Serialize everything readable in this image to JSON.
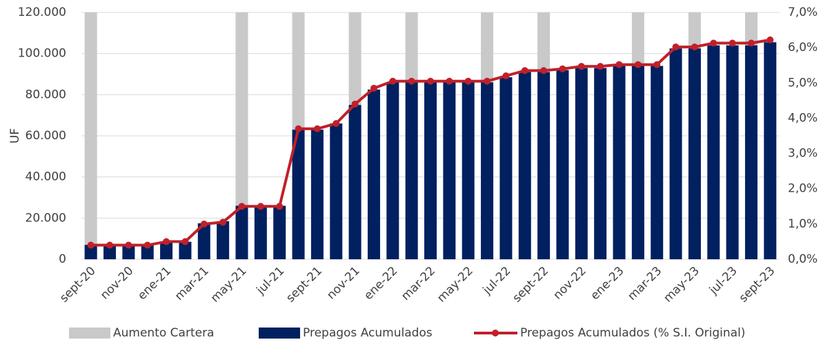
{
  "chart_data": {
    "type": "bar",
    "y_label": "UF",
    "categories": [
      "sept-20",
      null,
      "nov-20",
      null,
      "ene-21",
      null,
      "mar-21",
      null,
      "may-21",
      null,
      "jul-21",
      null,
      "sept-21",
      null,
      "nov-21",
      null,
      "ene-22",
      null,
      "mar-22",
      null,
      "may-22",
      null,
      "jul-22",
      null,
      "sept-22",
      null,
      "nov-22",
      null,
      "ene-23",
      null,
      "mar-23",
      null,
      "may-23",
      null,
      "jul-23",
      null,
      "sept-23"
    ],
    "series": [
      {
        "name": "Aumento Cartera",
        "type": "bar",
        "color": "#c9c9c9",
        "values": [
          120000,
          null,
          null,
          null,
          null,
          null,
          null,
          null,
          120000,
          null,
          null,
          120000,
          null,
          null,
          120000,
          null,
          null,
          120000,
          null,
          null,
          null,
          120000,
          null,
          null,
          120000,
          null,
          null,
          null,
          null,
          120000,
          null,
          null,
          120000,
          null,
          null,
          120000,
          null
        ]
      },
      {
        "name": "Prepagos Acumulados",
        "type": "bar",
        "color": "#002060",
        "values": [
          7000,
          7000,
          7000,
          7000,
          8500,
          8500,
          17500,
          18500,
          26000,
          26000,
          26000,
          63000,
          63000,
          66000,
          75000,
          82500,
          86000,
          86000,
          86000,
          86000,
          86000,
          86000,
          88500,
          91000,
          91000,
          92000,
          93000,
          93000,
          94000,
          94000,
          94000,
          102500,
          102500,
          104000,
          104000,
          104000,
          105500
        ]
      },
      {
        "name": "Prepagos Acumulados (% S.I. Original)",
        "type": "line",
        "axis": "y2",
        "color": "#c0202a",
        "values": [
          0.4,
          0.4,
          0.4,
          0.4,
          0.5,
          0.5,
          1.0,
          1.05,
          1.5,
          1.5,
          1.5,
          3.7,
          3.7,
          3.85,
          4.4,
          4.85,
          5.05,
          5.05,
          5.05,
          5.05,
          5.05,
          5.05,
          5.2,
          5.35,
          5.35,
          5.4,
          5.47,
          5.47,
          5.52,
          5.52,
          5.52,
          6.02,
          6.02,
          6.13,
          6.13,
          6.13,
          6.22
        ]
      }
    ],
    "ylim": [
      0,
      120000
    ],
    "yticks": [
      0,
      {
        "value": 20000,
        "label": "20.000"
      },
      {
        "value": 40000,
        "label": "40.000"
      },
      {
        "value": 60000,
        "label": "60.000"
      },
      {
        "value": 80000,
        "label": "80.000"
      },
      {
        "value": 100000,
        "label": "100.000"
      },
      {
        "value": 120000,
        "label": "120.000"
      }
    ],
    "y2lim": [
      0,
      7
    ],
    "y2ticks": [
      {
        "value": 0,
        "label": "0,0%"
      },
      {
        "value": 1,
        "label": "1,0%"
      },
      {
        "value": 2,
        "label": "2,0%"
      },
      {
        "value": 3,
        "label": "3,0%"
      },
      {
        "value": 4,
        "label": "4,0%"
      },
      {
        "value": 5,
        "label": "5,0%"
      },
      {
        "value": 6,
        "label": "6,0%"
      },
      {
        "value": 7,
        "label": "7,0%"
      }
    ],
    "grid": true,
    "legend": "bottom"
  }
}
